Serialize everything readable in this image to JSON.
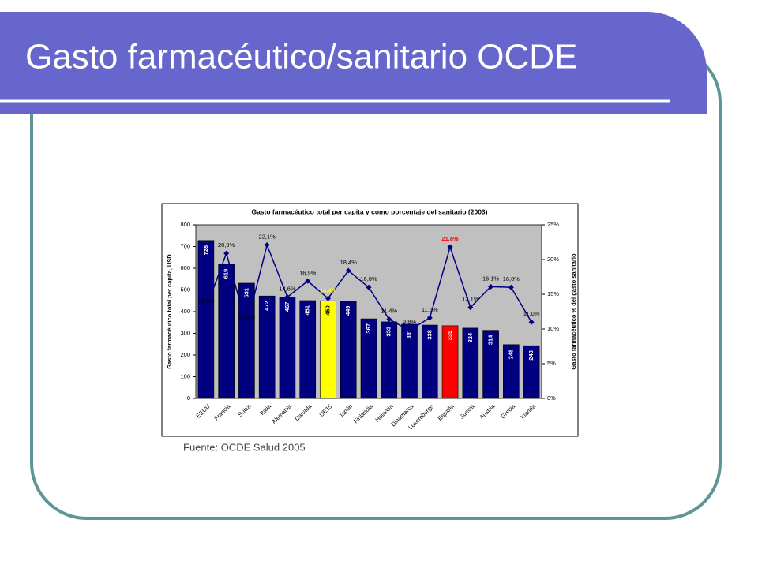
{
  "slide_title": "Gasto farmacéutico/sanitario OCDE",
  "source": "Fuente: OCDE Salud 2005",
  "chart_data": {
    "type": "bar-line",
    "title": "Gasto farmacéutico total per capita y como porcentaje del sanitario (2003)",
    "y_label": "Gasto farmacéutico total per capita, USD",
    "y2_label": "Gasto farmacéutico % del gasto sanitario",
    "categories": [
      "EEUU",
      "Francia",
      "Suiza",
      "Italia",
      "Alemania",
      "Canada",
      "UE15",
      "Japón",
      "Finlandia",
      "Holanda",
      "Dinamarca",
      "Luxemburgo",
      "España",
      "Suecia",
      "Austria",
      "Grecia",
      "Irlanda"
    ],
    "series": [
      {
        "name": "Gasto per capita",
        "type": "bar",
        "color": "#000080",
        "colors": [
          "#000080",
          "#000080",
          "#000080",
          "#000080",
          "#000080",
          "#000080",
          "#ffff00",
          "#000080",
          "#000080",
          "#000080",
          "#000080",
          "#000080",
          "#ff0000",
          "#000080",
          "#000080",
          "#000080",
          "#000080"
        ],
        "values": [
          728,
          619,
          531,
          472,
          467,
          451,
          450,
          449,
          367,
          353,
          342,
          338,
          335,
          324,
          314,
          248,
          243
        ]
      },
      {
        "name": "% del gasto sanitario",
        "type": "line",
        "axis": "y2",
        "color": "#000080",
        "label_colors": [
          "#000000",
          "#000000",
          "#000000",
          "#000000",
          "#000000",
          "#000000",
          "#ffff00",
          "#000000",
          "#000000",
          "#000000",
          "#000000",
          "#000000",
          "#ff0000",
          "#000000",
          "#000000",
          "#000000",
          "#000000"
        ],
        "values": [
          12.9,
          20.9,
          10.5,
          22.1,
          14.6,
          16.9,
          14.4,
          18.4,
          16.0,
          11.4,
          9.8,
          11.6,
          21.8,
          13.1,
          16.1,
          16.0,
          11.0
        ],
        "value_labels": [
          "12,9%",
          "20,9%",
          "10,5%",
          "22,1%",
          "14,6%",
          "16,9%",
          "14,4%",
          "18,4%",
          "16,0%",
          "11,4%",
          "9,8%",
          "11,6%",
          "21,8%",
          "13,1%",
          "16,1%",
          "16,0%",
          "11,0%"
        ]
      }
    ],
    "ylim": [
      0,
      800
    ],
    "yticks": [
      0,
      100,
      200,
      300,
      400,
      500,
      600,
      700,
      800
    ],
    "y2lim": [
      0,
      25
    ],
    "y2ticks": [
      {
        "value": 0,
        "label": "0%"
      },
      {
        "value": 5,
        "label": "5%"
      },
      {
        "value": 10,
        "label": "10%"
      },
      {
        "value": 15,
        "label": "15%"
      },
      {
        "value": 20,
        "label": "20%"
      },
      {
        "value": 25,
        "label": "25%"
      }
    ],
    "plot_background": "#c0c0c0"
  }
}
